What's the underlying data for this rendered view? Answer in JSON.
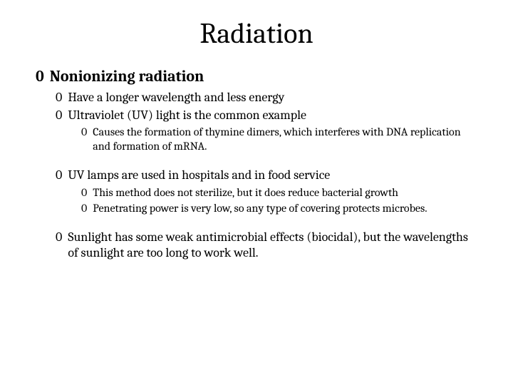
{
  "title": "Radiation",
  "bullet_glyph": "0",
  "colors": {
    "background": "#ffffff",
    "text": "#000000"
  },
  "typography": {
    "title_fontsize": 40,
    "lvl1_fontsize": 22,
    "lvl2_fontsize": 18,
    "lvl3_fontsize": 16,
    "font_family": "Cambria, Georgia, serif"
  },
  "content": {
    "lvl1_1": "Nonionizing radiation",
    "lvl2_1": "Have  a longer wavelength and less energy",
    "lvl2_2": "Ultraviolet (UV) light is the common example",
    "lvl3_1": "Causes the formation of thymine dimers, which interferes with DNA replication and formation of mRNA.",
    "lvl2_3": "UV lamps are used in hospitals and in food service",
    "lvl3_2": "This method does not sterilize, but it does reduce bacterial growth",
    "lvl3_3": "Penetrating power is very low, so any type of covering protects microbes.",
    "lvl2_4": "Sunlight has some weak antimicrobial effects (biocidal), but the wavelengths of sunlight are too long to work well."
  }
}
